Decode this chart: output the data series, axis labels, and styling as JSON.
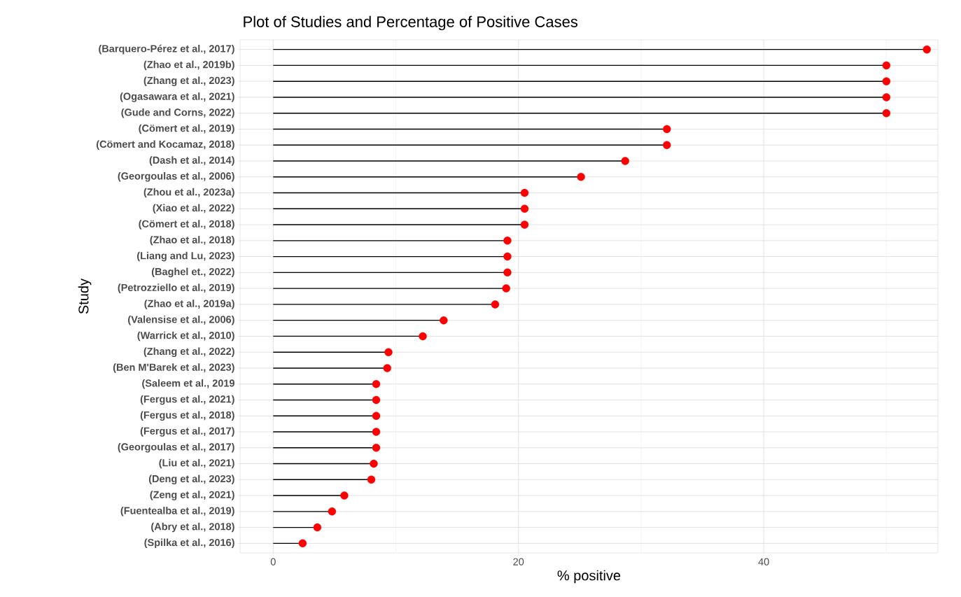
{
  "chart_data": {
    "type": "lollipop",
    "orientation": "horizontal",
    "title": "Plot of Studies and Percentage of Positive Cases",
    "xlabel": "% positive",
    "ylabel": "Study",
    "categories": [
      "(Barquero-Pérez et al., 2017)",
      "(Zhao et al., 2019b)",
      "(Zhang et al., 2023)",
      "(Ogasawara et al., 2021)",
      "(Gude and Corns, 2022)",
      "(Cömert et al., 2019)",
      "(Cömert and Kocamaz, 2018)",
      "(Dash et al., 2014)",
      "(Georgoulas et al., 2006)",
      "(Zhou et al., 2023a)",
      "(Xiao et al., 2022)",
      "(Cömert et al., 2018)",
      "(Zhao et al., 2018)",
      "(Liang and Lu, 2023)",
      "(Baghel et., 2022)",
      "(Petrozziello et al., 2019)",
      "(Zhao et al., 2019a)",
      "(Valensise et al., 2006)",
      "(Warrick et al., 2010)",
      "(Zhang et al., 2022)",
      "(Ben M'Barek et al., 2023)",
      "(Saleem et al., 2019",
      "(Fergus et al., 2021)",
      "(Fergus et al., 2018)",
      "(Fergus et al., 2017)",
      "(Georgoulas et al., 2017)",
      "(Liu et al., 2021)",
      "(Deng et al., 2023)",
      "(Zeng et al., 2021)",
      "(Fuentealba et al., 2019)",
      "(Abry et al., 2018)",
      "(Spilka et al., 2016)"
    ],
    "values": [
      53.3,
      50,
      50,
      50,
      50,
      32.1,
      32.1,
      28.7,
      25.1,
      20.5,
      20.5,
      20.5,
      19.1,
      19.1,
      19.1,
      19.0,
      18.1,
      13.9,
      12.2,
      9.4,
      9.3,
      8.4,
      8.4,
      8.4,
      8.4,
      8.4,
      8.2,
      8.0,
      5.8,
      4.8,
      3.6,
      2.4
    ],
    "color": "#ff0000",
    "marker": "circle",
    "grid": true,
    "xlim": [
      -2.7,
      54.2
    ],
    "xticks": [
      0,
      {
        "value": 10,
        "label": null
      },
      20,
      {
        "value": 30,
        "label": null
      },
      40,
      {
        "value": 50,
        "label": null
      }
    ]
  }
}
